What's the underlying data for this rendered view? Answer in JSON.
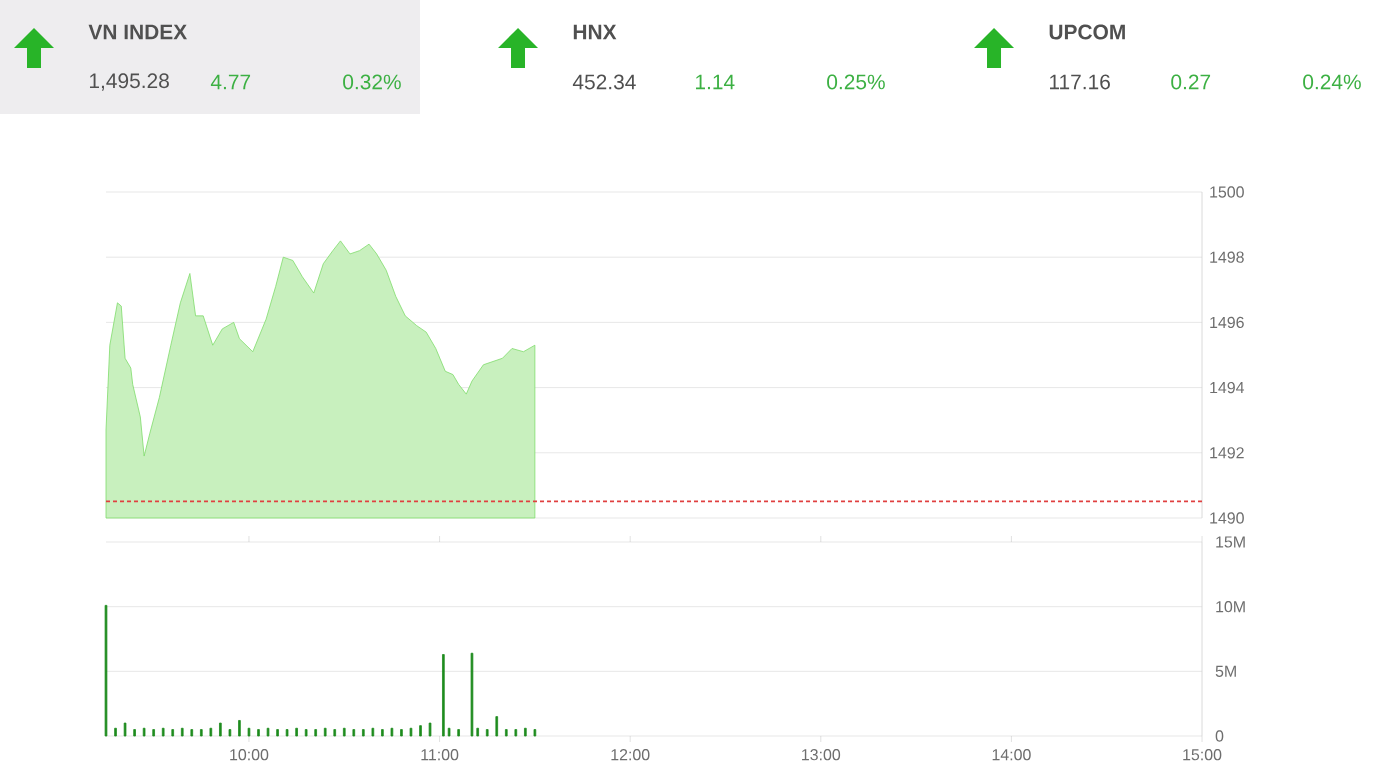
{
  "chart_data": [
    {
      "type": "other",
      "annotations": [
        "VN INDEX",
        "1,495.28",
        "4.77",
        "0.32%",
        "HNX",
        "452.34",
        "1.14",
        "0.25%",
        "UPCOM",
        "117.16",
        "0.27",
        "0.24%"
      ]
    },
    {
      "type": "area",
      "color": "#7fdc6b",
      "xlim": [
        9.25,
        15
      ],
      "ylim": [
        1490,
        1500
      ],
      "yticks": [
        1490,
        1492,
        1494,
        1496,
        1498,
        1500
      ],
      "grid": "y",
      "tick_labels": "y",
      "x": [
        9.25,
        9.27,
        9.31,
        9.33,
        9.35,
        9.38,
        9.39,
        9.43,
        9.45,
        9.48,
        9.53,
        9.59,
        9.64,
        9.69,
        9.72,
        9.76,
        9.81,
        9.86,
        9.92,
        9.95,
        10.02,
        10.09,
        10.14,
        10.18,
        10.23,
        10.28,
        10.34,
        10.39,
        10.44,
        10.48,
        10.53,
        10.58,
        10.63,
        10.67,
        10.72,
        10.77,
        10.82,
        10.88,
        10.93,
        10.98,
        11.03,
        11.07,
        11.1,
        11.14,
        11.17,
        11.23,
        11.28,
        11.33,
        11.38,
        11.44,
        11.5
      ],
      "values": [
        1492.7,
        1495.3,
        1496.6,
        1496.5,
        1494.9,
        1494.6,
        1494.1,
        1493.1,
        1491.9,
        1492.6,
        1493.7,
        1495.3,
        1496.6,
        1497.5,
        1496.2,
        1496.2,
        1495.3,
        1495.8,
        1496.0,
        1495.5,
        1495.1,
        1496.1,
        1497.1,
        1498.0,
        1497.9,
        1497.4,
        1496.9,
        1497.8,
        1498.2,
        1498.5,
        1498.1,
        1498.2,
        1498.4,
        1498.1,
        1497.6,
        1496.8,
        1496.2,
        1495.9,
        1495.7,
        1495.2,
        1494.5,
        1494.4,
        1494.1,
        1493.8,
        1494.2,
        1494.7,
        1494.8,
        1494.9,
        1495.2,
        1495.1,
        1495.3
      ],
      "ref_lines": [
        {
          "axis": "y",
          "value": 1490.51,
          "color": "#e04040",
          "line_style": "dashed"
        }
      ]
    },
    {
      "type": "bar",
      "color": "#1e8c1e",
      "xlim": [
        9.25,
        15
      ],
      "ylim": [
        0,
        15
      ],
      "grid": "y",
      "yticks": [
        0,
        {
          "value": 5,
          "label": "5M"
        },
        {
          "value": 10,
          "label": "10M"
        },
        {
          "value": 15,
          "label": "15M"
        }
      ],
      "xticks": [
        {
          "value": 10,
          "label": "10:00"
        },
        {
          "value": 11,
          "label": "11:00"
        },
        {
          "value": 12,
          "label": "12:00"
        },
        {
          "value": 13,
          "label": "13:00"
        },
        {
          "value": 14,
          "label": "14:00"
        },
        {
          "value": 15,
          "label": "15:00"
        }
      ],
      "x": [
        9.25,
        9.3,
        9.35,
        9.4,
        9.45,
        9.5,
        9.55,
        9.6,
        9.65,
        9.7,
        9.75,
        9.8,
        9.85,
        9.9,
        9.95,
        10.0,
        10.05,
        10.1,
        10.15,
        10.2,
        10.25,
        10.3,
        10.35,
        10.4,
        10.45,
        10.5,
        10.55,
        10.6,
        10.65,
        10.7,
        10.75,
        10.8,
        10.85,
        10.9,
        10.95,
        11.02,
        11.05,
        11.1,
        11.17,
        11.2,
        11.25,
        11.3,
        11.35,
        11.4,
        11.45,
        11.5
      ],
      "values": [
        10.1,
        0.6,
        1.0,
        0.5,
        0.6,
        0.5,
        0.6,
        0.5,
        0.6,
        0.5,
        0.5,
        0.6,
        1.0,
        0.5,
        1.2,
        0.6,
        0.5,
        0.6,
        0.5,
        0.5,
        0.6,
        0.5,
        0.5,
        0.6,
        0.5,
        0.6,
        0.5,
        0.5,
        0.6,
        0.5,
        0.6,
        0.5,
        0.6,
        0.8,
        1.0,
        6.3,
        0.6,
        0.5,
        6.4,
        0.6,
        0.5,
        1.5,
        0.5,
        0.5,
        0.6,
        0.5
      ]
    }
  ]
}
